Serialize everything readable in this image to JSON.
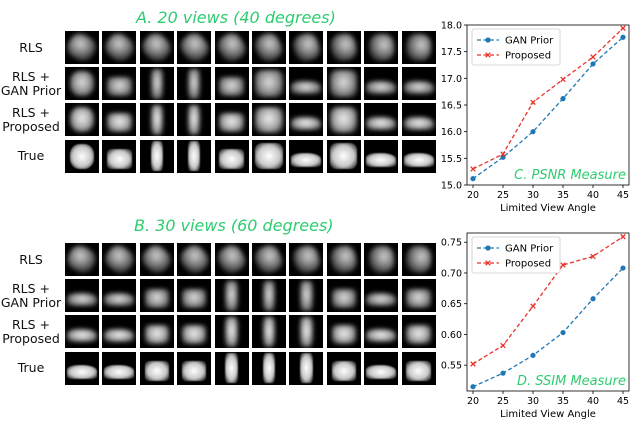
{
  "panels": [
    {
      "title": "A. 20 views (40 degrees)",
      "row_labels": [
        [
          "RLS"
        ],
        [
          "RLS +",
          "GAN Prior"
        ],
        [
          "RLS +",
          "Proposed"
        ],
        [
          "True"
        ]
      ],
      "columns": 10,
      "column_items": [
        "hat-like",
        "bag",
        "dress",
        "dress",
        "bag",
        "shirt",
        "sneaker",
        "shirt",
        "sneaker",
        "boot"
      ]
    },
    {
      "title": "B. 30 views (60 degrees)",
      "row_labels": [
        [
          "RLS"
        ],
        [
          "RLS +",
          "GAN Prior"
        ],
        [
          "RLS +",
          "Proposed"
        ],
        [
          "True"
        ]
      ],
      "columns": 10,
      "column_items": [
        "sneaker",
        "sneaker",
        "bag",
        "bag",
        "trouser",
        "trouser",
        "trouser",
        "bag",
        "sneaker",
        "bag"
      ]
    }
  ],
  "chart_data": [
    {
      "type": "line",
      "title": "",
      "annotation": "C. PSNR Measure",
      "xlabel": "Limited View Angle",
      "ylabel": "",
      "x": [
        20,
        25,
        30,
        35,
        40,
        45
      ],
      "xticks": [
        "20",
        "25",
        "30",
        "35",
        "40",
        "45"
      ],
      "ylim": [
        15.0,
        18.0
      ],
      "yticks": [
        "15.0",
        "15.5",
        "16.0",
        "16.5",
        "17.0",
        "17.5",
        "18.0"
      ],
      "grid": false,
      "legend_position": "top-left",
      "series": [
        {
          "name": "GAN Prior",
          "color": "#1f77b4",
          "marker": "circle",
          "values": [
            15.12,
            15.52,
            16.0,
            16.62,
            17.27,
            17.77
          ]
        },
        {
          "name": "Proposed",
          "color": "#e8322a",
          "marker": "x",
          "values": [
            15.3,
            15.58,
            16.55,
            16.98,
            17.4,
            17.94
          ]
        }
      ]
    },
    {
      "type": "line",
      "title": "",
      "annotation": "D. SSIM Measure",
      "xlabel": "Limited View Angle",
      "ylabel": "",
      "x": [
        20,
        25,
        30,
        35,
        40,
        45
      ],
      "xticks": [
        "20",
        "25",
        "30",
        "35",
        "40",
        "45"
      ],
      "ylim": [
        0.508,
        0.765
      ],
      "yticks": [
        "0.55",
        "0.60",
        "0.65",
        "0.70",
        "0.75"
      ],
      "grid": false,
      "legend_position": "top-left",
      "series": [
        {
          "name": "GAN Prior",
          "color": "#1f77b4",
          "marker": "circle",
          "values": [
            0.515,
            0.537,
            0.566,
            0.603,
            0.658,
            0.708
          ]
        },
        {
          "name": "Proposed",
          "color": "#e8322a",
          "marker": "x",
          "values": [
            0.552,
            0.582,
            0.646,
            0.713,
            0.727,
            0.759
          ]
        }
      ]
    }
  ]
}
